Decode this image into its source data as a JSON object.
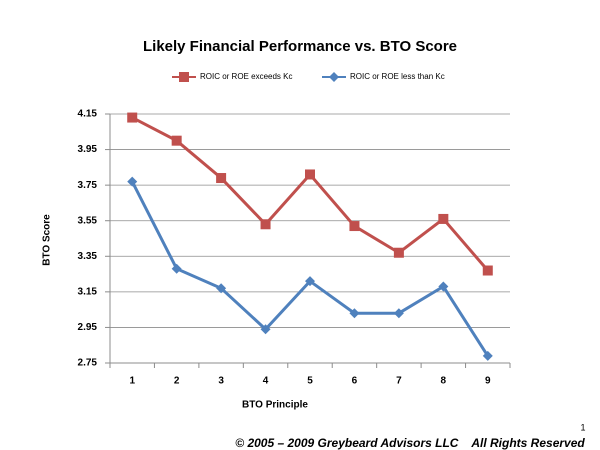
{
  "chart_data": {
    "type": "line",
    "title": "Likely Financial Performance vs. BTO Score",
    "x_label": "BTO Principle",
    "y_label": "BTO Score",
    "categories": [
      "1",
      "2",
      "3",
      "4",
      "5",
      "6",
      "7",
      "8",
      "9"
    ],
    "series": [
      {
        "name": "ROIC or ROE exceeds Kc",
        "color": "#c0504d",
        "marker": "square",
        "values": [
          4.13,
          4.0,
          3.79,
          3.53,
          3.81,
          3.52,
          3.37,
          3.56,
          3.27
        ]
      },
      {
        "name": "ROIC or ROE less than Kc",
        "color": "#4f81bd",
        "marker": "diamond",
        "values": [
          3.77,
          3.28,
          3.17,
          2.94,
          3.21,
          3.03,
          3.03,
          3.18,
          2.79
        ]
      }
    ],
    "ylim": [
      2.75,
      4.15
    ],
    "yticks": [
      2.75,
      2.95,
      3.15,
      3.35,
      3.55,
      3.75,
      3.95,
      4.15
    ],
    "grid": true,
    "legend": "top"
  },
  "slide_number": "1",
  "footer": "© 2005 – 2009 Greybeard Advisors LLC    All Rights Reserved"
}
